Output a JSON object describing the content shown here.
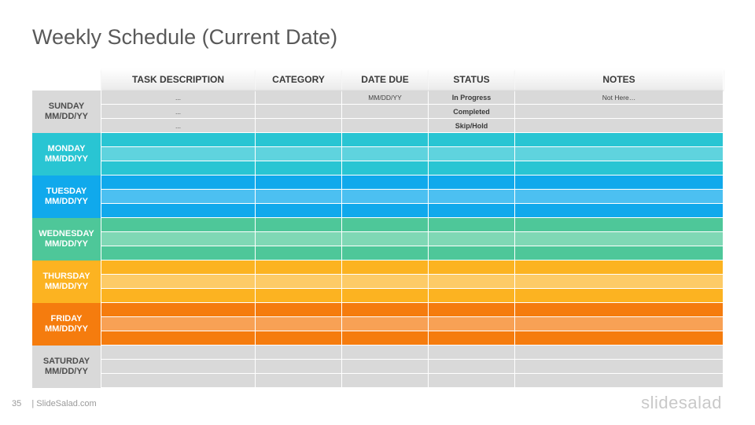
{
  "slide_title": "Weekly Schedule (Current Date)",
  "columns": [
    "TASK DESCRIPTION",
    "CATEGORY",
    "DATE DUE",
    "STATUS",
    "NOTES"
  ],
  "days": [
    {
      "name": "SUNDAY",
      "date": "MM/DD/YY",
      "colors": [
        "#d9d9d9",
        "#d9d9d9",
        "#d9d9d9"
      ],
      "label_color": "#d9d9d9",
      "text_color": "#4d4d4d",
      "rows": [
        [
          "...",
          "",
          "MM/DD/YY",
          "In Progress",
          "Not Here…"
        ],
        [
          "...",
          "",
          "",
          "Completed",
          ""
        ],
        [
          "...",
          "",
          "",
          "Skip/Hold",
          ""
        ]
      ]
    },
    {
      "name": "MONDAY",
      "date": "MM/DD/YY",
      "colors": [
        "#29c5d3",
        "#5fd3de",
        "#29c5d3"
      ],
      "label_color": "#29c5d3",
      "text_color": "#ffffff",
      "rows": [
        [
          "",
          "",
          "",
          "",
          ""
        ],
        [
          "",
          "",
          "",
          "",
          ""
        ],
        [
          "",
          "",
          "",
          "",
          ""
        ]
      ]
    },
    {
      "name": "TUESDAY",
      "date": "MM/DD/YY",
      "colors": [
        "#10a9ec",
        "#4cc0f1",
        "#10a9ec"
      ],
      "label_color": "#10a9ec",
      "text_color": "#ffffff",
      "rows": [
        [
          "",
          "",
          "",
          "",
          ""
        ],
        [
          "",
          "",
          "",
          "",
          ""
        ],
        [
          "",
          "",
          "",
          "",
          ""
        ]
      ]
    },
    {
      "name": "WEDNESDAY",
      "date": "MM/DD/YY",
      "colors": [
        "#4ec799",
        "#7fd8b5",
        "#4ec799"
      ],
      "label_color": "#4ec799",
      "text_color": "#ffffff",
      "rows": [
        [
          "",
          "",
          "",
          "",
          ""
        ],
        [
          "",
          "",
          "",
          "",
          ""
        ],
        [
          "",
          "",
          "",
          "",
          ""
        ]
      ]
    },
    {
      "name": "THURSDAY",
      "date": "MM/DD/YY",
      "colors": [
        "#fcb321",
        "#fdcb67",
        "#fcb321"
      ],
      "label_color": "#fcb321",
      "text_color": "#ffffff",
      "rows": [
        [
          "",
          "",
          "",
          "",
          ""
        ],
        [
          "",
          "",
          "",
          "",
          ""
        ],
        [
          "",
          "",
          "",
          "",
          ""
        ]
      ]
    },
    {
      "name": "FRIDAY",
      "date": "MM/DD/YY",
      "colors": [
        "#f57c0e",
        "#f8a155",
        "#f57c0e"
      ],
      "label_color": "#f57c0e",
      "text_color": "#ffffff",
      "rows": [
        [
          "",
          "",
          "",
          "",
          ""
        ],
        [
          "",
          "",
          "",
          "",
          ""
        ],
        [
          "",
          "",
          "",
          "",
          ""
        ]
      ]
    },
    {
      "name": "SATURDAY",
      "date": "MM/DD/YY",
      "colors": [
        "#d9d9d9",
        "#d9d9d9",
        "#d9d9d9"
      ],
      "label_color": "#d9d9d9",
      "text_color": "#4d4d4d",
      "rows": [
        [
          "",
          "",
          "",
          "",
          ""
        ],
        [
          "",
          "",
          "",
          "",
          ""
        ],
        [
          "",
          "",
          "",
          "",
          ""
        ]
      ]
    }
  ],
  "footer": {
    "page_number": "35",
    "source": "| SlideSalad.com"
  },
  "logo": "slidesalad"
}
